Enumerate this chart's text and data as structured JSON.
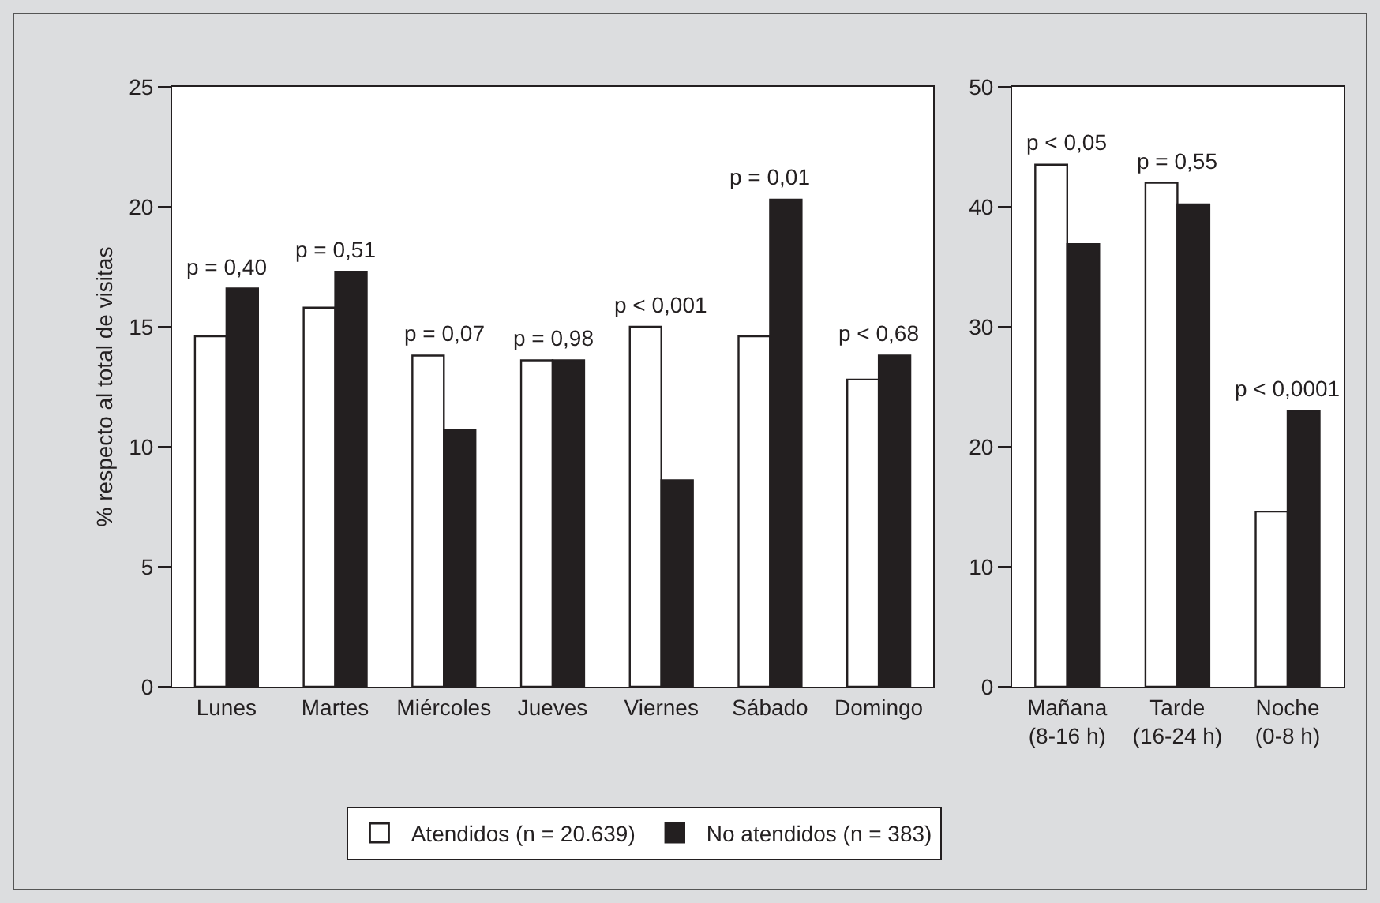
{
  "chart_data": [
    {
      "type": "bar",
      "ylabel": "% respecto al total de visitas",
      "categories": [
        "Lunes",
        "Martes",
        "Miércoles",
        "Jueves",
        "Viernes",
        "Sábado",
        "Domingo"
      ],
      "series": [
        {
          "name": "Atendidos (n = 20.639)",
          "color": "#ffffff",
          "values": [
            14.6,
            15.8,
            13.8,
            13.6,
            15.0,
            14.6,
            12.8
          ]
        },
        {
          "name": "No atendidos (n = 383)",
          "color": "#231f20",
          "values": [
            16.6,
            17.3,
            10.7,
            13.6,
            8.6,
            20.3,
            13.8
          ]
        }
      ],
      "ylim": [
        0,
        25
      ],
      "yticks": [
        0,
        5,
        10,
        15,
        20,
        25
      ],
      "grid": false,
      "legend": "bottom",
      "annotations": [
        {
          "text": "p = 0,40",
          "x": "Lunes",
          "y": 16.6
        },
        {
          "text": "p = 0,51",
          "x": "Martes",
          "y": 17.3
        },
        {
          "text": "p = 0,07",
          "x": "Miércoles",
          "y": 13.8
        },
        {
          "text": "p = 0,98",
          "x": "Jueves",
          "y": 13.6
        },
        {
          "text": "p < 0,001",
          "x": "Viernes",
          "y": 15.0
        },
        {
          "text": "p = 0,01",
          "x": "Sábado",
          "y": 20.3
        },
        {
          "text": "p < 0,68",
          "x": "Domingo",
          "y": 13.8
        }
      ]
    },
    {
      "type": "bar",
      "categories": [
        "Mañana\n(8-16 h)",
        "Tarde\n(16-24 h)",
        "Noche\n(0-8 h)"
      ],
      "series": [
        {
          "color": "#ffffff",
          "values": [
            43.5,
            42.0,
            14.6
          ]
        },
        {
          "color": "#231f20",
          "values": [
            36.9,
            40.2,
            23.0
          ]
        }
      ],
      "ylim": [
        0,
        50
      ],
      "yticks": [
        0,
        10,
        20,
        30,
        40,
        50
      ],
      "grid": false,
      "legend": false,
      "annotations": [
        {
          "text": "p < 0,05",
          "x": "Mañana\n(8-16 h)",
          "y": 43.5
        },
        {
          "text": "p = 0,55",
          "x": "Tarde\n(16-24 h)",
          "y": 42.0
        },
        {
          "text": "p < 0,0001",
          "x": "Noche\n(0-8 h)",
          "y": 23.0
        }
      ]
    }
  ]
}
